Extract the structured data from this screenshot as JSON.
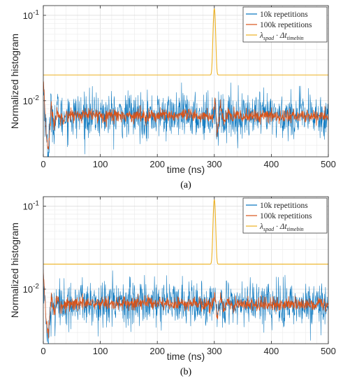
{
  "chart_data": [
    {
      "id": "a",
      "type": "line",
      "caption": "(a)",
      "xlabel": "time (ns)",
      "ylabel": "Normalized histogram",
      "xlim": [
        0,
        500
      ],
      "ylim": [
        0.0022,
        0.13
      ],
      "yscale": "log",
      "grid": true,
      "x_ticks": [
        0,
        100,
        200,
        300,
        400,
        500
      ],
      "y_ticks": [
        {
          "value": 0.01,
          "label": "10",
          "exp": "-2"
        },
        {
          "value": 0.1,
          "label": "10",
          "exp": "-1"
        }
      ],
      "legend_position": "top-right",
      "baseline": 0.0066,
      "series": [
        {
          "name": "10k repetitions",
          "color": "#0072BD",
          "noise": 0.3
        },
        {
          "name": "100k repetitions",
          "color": "#D95319",
          "noise": 0.09
        },
        {
          "name": "λspad · Δttimebin",
          "color": "#EDB120",
          "baseline": 0.02,
          "peak": {
            "x": 300,
            "y": 0.12,
            "width": 2.5
          }
        }
      ],
      "features": [
        {
          "x": 0,
          "y": 0.016
        },
        {
          "x": 5,
          "y": 0.0042
        },
        {
          "x": 9,
          "y": 0.0027
        },
        {
          "x": 14,
          "y": 0.0084
        },
        {
          "x": 19,
          "y": 0.0052
        },
        {
          "x": 25,
          "y": 0.0075
        },
        {
          "x": 31,
          "y": 0.006
        },
        {
          "x": 38,
          "y": 0.0068
        },
        {
          "x": 298,
          "y": 0.0066
        },
        {
          "x": 301,
          "y": 0.0095
        },
        {
          "x": 305,
          "y": 0.0041
        },
        {
          "x": 311,
          "y": 0.0088
        },
        {
          "x": 317,
          "y": 0.0056
        },
        {
          "x": 324,
          "y": 0.0073
        },
        {
          "x": 332,
          "y": 0.0062
        },
        {
          "x": 340,
          "y": 0.0066
        }
      ]
    },
    {
      "id": "b",
      "type": "line",
      "caption": "(b)",
      "xlabel": "time (ns)",
      "ylabel": "Normalized histogram",
      "xlim": [
        0,
        500
      ],
      "ylim": [
        0.0022,
        0.13
      ],
      "yscale": "log",
      "grid": true,
      "x_ticks": [
        0,
        100,
        200,
        300,
        400,
        500
      ],
      "y_ticks": [
        {
          "value": 0.01,
          "label": "10",
          "exp": "-2"
        },
        {
          "value": 0.1,
          "label": "10",
          "exp": "-1"
        }
      ],
      "legend_position": "top-right",
      "baseline": 0.0066,
      "series": [
        {
          "name": "10k repetitions",
          "color": "#0072BD",
          "noise": 0.3
        },
        {
          "name": "100k repetitions",
          "color": "#D95319",
          "noise": 0.09
        },
        {
          "name": "λspad · Δttimebin",
          "color": "#EDB120",
          "baseline": 0.02,
          "peak": {
            "x": 300,
            "y": 0.12,
            "width": 2.5
          }
        }
      ],
      "features": [
        {
          "x": 0,
          "y": 0.016
        },
        {
          "x": 5,
          "y": 0.0042
        },
        {
          "x": 9,
          "y": 0.0027
        },
        {
          "x": 14,
          "y": 0.0084
        },
        {
          "x": 19,
          "y": 0.0052
        },
        {
          "x": 25,
          "y": 0.0075
        },
        {
          "x": 31,
          "y": 0.006
        },
        {
          "x": 38,
          "y": 0.0068
        },
        {
          "x": 298,
          "y": 0.0066
        },
        {
          "x": 301,
          "y": 0.0095
        },
        {
          "x": 305,
          "y": 0.0041
        },
        {
          "x": 311,
          "y": 0.0088
        },
        {
          "x": 317,
          "y": 0.0056
        },
        {
          "x": 324,
          "y": 0.0073
        },
        {
          "x": 332,
          "y": 0.0062
        },
        {
          "x": 340,
          "y": 0.0066
        }
      ]
    }
  ]
}
